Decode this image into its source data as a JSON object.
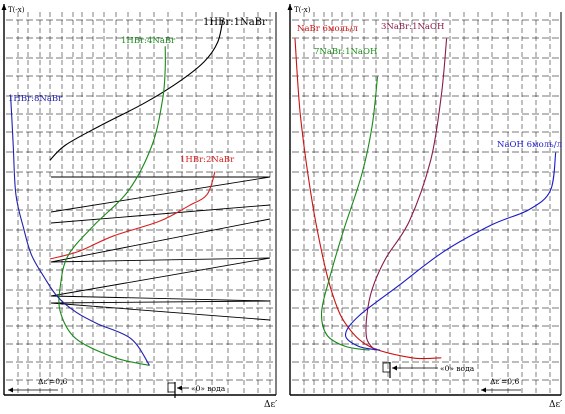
{
  "chart_data": [
    {
      "type": "line",
      "y_axis_label": "T(-x)",
      "x_axis_label": "Δε′",
      "scale_note": "Δε′=0,6",
      "reference_label": "«0» вода",
      "series": [
        {
          "name": "1HBr:1NaBr",
          "color": "#000000",
          "label_size": "large",
          "points": [
            [
              0.82,
              0.02
            ],
            [
              0.8,
              0.08
            ],
            [
              0.75,
              0.13
            ],
            [
              0.66,
              0.18
            ],
            [
              0.52,
              0.24
            ],
            [
              0.35,
              0.3
            ],
            [
              0.22,
              0.35
            ],
            [
              0.16,
              0.39
            ]
          ]
        },
        {
          "name": "1HBr:2NaBr",
          "color": "#d62020",
          "points": [
            [
              0.79,
              0.42
            ],
            [
              0.76,
              0.48
            ],
            [
              0.69,
              0.51
            ],
            [
              0.58,
              0.55
            ],
            [
              0.4,
              0.59
            ],
            [
              0.27,
              0.63
            ],
            [
              0.16,
              0.65
            ]
          ]
        },
        {
          "name": "1HBr:4NaBr",
          "color": "#1a8a1a",
          "points": [
            [
              0.6,
              0.09
            ],
            [
              0.6,
              0.15
            ],
            [
              0.59,
              0.23
            ],
            [
              0.55,
              0.35
            ],
            [
              0.46,
              0.47
            ],
            [
              0.33,
              0.56
            ],
            [
              0.23,
              0.64
            ],
            [
              0.2,
              0.72
            ],
            [
              0.2,
              0.79
            ],
            [
              0.26,
              0.86
            ],
            [
              0.41,
              0.91
            ],
            [
              0.54,
              0.93
            ]
          ]
        },
        {
          "name": "1HBr:8NaBr",
          "color": "#2020b0",
          "points": [
            [
              0.01,
              0.22
            ],
            [
              0.02,
              0.35
            ],
            [
              0.03,
              0.48
            ],
            [
              0.06,
              0.57
            ],
            [
              0.09,
              0.64
            ],
            [
              0.14,
              0.7
            ],
            [
              0.19,
              0.75
            ],
            [
              0.26,
              0.79
            ],
            [
              0.34,
              0.82
            ],
            [
              0.47,
              0.86
            ],
            [
              0.54,
              0.93
            ]
          ]
        }
      ]
    },
    {
      "type": "line",
      "y_axis_label": "T(-x)",
      "x_axis_label": "Δε′",
      "scale_note": "Δε′=0,6",
      "reference_label": "«0» вода",
      "series": [
        {
          "name": "NaBr 6моль/л",
          "color": "#cc1111",
          "points": [
            [
              0.0,
              0.07
            ],
            [
              0.02,
              0.27
            ],
            [
              0.06,
              0.48
            ],
            [
              0.1,
              0.63
            ],
            [
              0.14,
              0.74
            ],
            [
              0.19,
              0.82
            ],
            [
              0.28,
              0.88
            ],
            [
              0.44,
              0.91
            ],
            [
              0.55,
              0.91
            ]
          ]
        },
        {
          "name": "3NaBr:1NaOH",
          "color": "#8a1a4a",
          "points": [
            [
              0.57,
              0.07
            ],
            [
              0.55,
              0.22
            ],
            [
              0.51,
              0.39
            ],
            [
              0.43,
              0.55
            ],
            [
              0.34,
              0.65
            ],
            [
              0.29,
              0.73
            ],
            [
              0.27,
              0.8
            ],
            [
              0.27,
              0.86
            ],
            [
              0.3,
              0.89
            ]
          ]
        },
        {
          "name": "7NaBr:1NaOH",
          "color": "#1a8a1a",
          "points": [
            [
              0.31,
              0.17
            ],
            [
              0.29,
              0.3
            ],
            [
              0.25,
              0.43
            ],
            [
              0.18,
              0.58
            ],
            [
              0.13,
              0.7
            ],
            [
              0.1,
              0.79
            ],
            [
              0.12,
              0.85
            ],
            [
              0.19,
              0.88
            ],
            [
              0.28,
              0.89
            ]
          ]
        },
        {
          "name": "NaOH 6моль/л",
          "color": "#1a1acc",
          "points": [
            [
              0.98,
              0.37
            ],
            [
              0.96,
              0.47
            ],
            [
              0.88,
              0.52
            ],
            [
              0.74,
              0.56
            ],
            [
              0.56,
              0.63
            ],
            [
              0.39,
              0.72
            ],
            [
              0.24,
              0.8
            ],
            [
              0.19,
              0.85
            ],
            [
              0.24,
              0.88
            ],
            [
              0.32,
              0.89
            ]
          ]
        }
      ]
    }
  ]
}
